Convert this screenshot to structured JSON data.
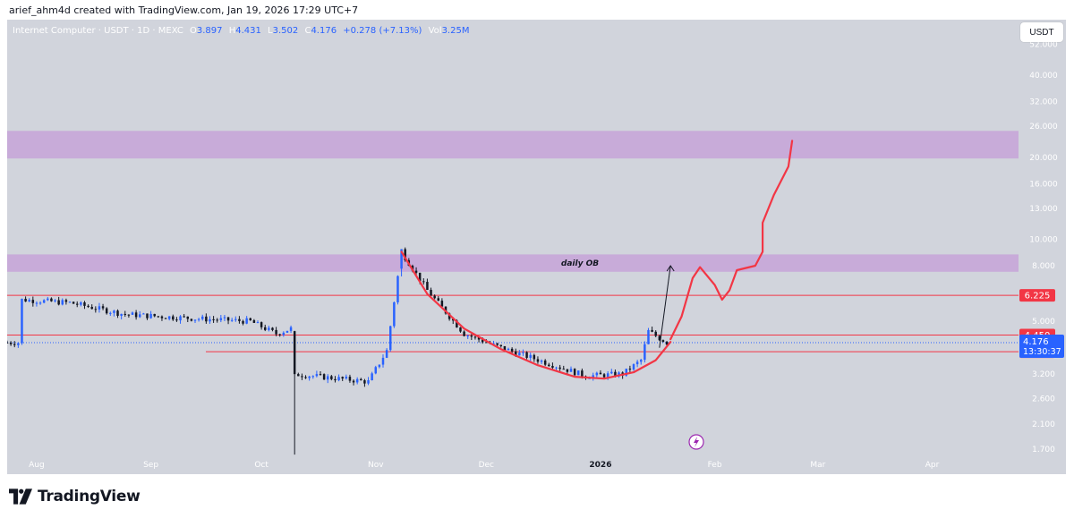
{
  "page": {
    "caption": "arief_ahm4d created with TradingView.com, Jan 19, 2026 17:29 UTC+7",
    "brand_name": "TradingView",
    "currency_button": "USDT"
  },
  "legend": {
    "symbol": "Internet Computer · USDT · 1D · MEXC",
    "open_label": "O",
    "open": "3.897",
    "high_label": "H",
    "high": "4.431",
    "low_label": "L",
    "low": "3.502",
    "close_label": "C",
    "close": "4.176",
    "change": "+0.278 (+7.13%)",
    "vol_label": "Vol",
    "volume": "3.25M"
  },
  "chart_data": {
    "type": "candlestick",
    "symbol": "Internet Computer / USDT",
    "timeframe": "1D",
    "exchange": "MEXC",
    "y_scale": "log",
    "ylim": [
      1.55,
      64
    ],
    "y_ticks": [
      "1.700",
      "2.100",
      "2.600",
      "3.200",
      "4.000",
      "5.000",
      "6.225",
      "8.000",
      "10.000",
      "13.000",
      "16.000",
      "20.000",
      "26.000",
      "32.000",
      "40.000",
      "52.000"
    ],
    "x_ticks": [
      "Aug",
      "Sep",
      "Oct",
      "Nov",
      "Dec",
      "2026",
      "Feb",
      "Mar",
      "Apr"
    ],
    "grid": false,
    "colors": {
      "background": "#d1d4dc",
      "up_candle": "#2962ff",
      "down_candle": "#131722",
      "zone": "#c6a6d8",
      "price_line": "#f23645",
      "drawing": "#f23645",
      "last_price": "#2962ff"
    },
    "price_lines": [
      {
        "label": "6.225",
        "value": 6.225,
        "color": "#f23645"
      },
      {
        "label": "4.450",
        "value": 4.45,
        "color": "#f23645"
      },
      {
        "label": "3.865",
        "value": 3.865,
        "color": "#f23645"
      }
    ],
    "last_price": {
      "label": "4.176",
      "value": 4.176,
      "countdown": "13:30:37"
    },
    "zones": [
      {
        "label": "",
        "low": 19.8,
        "high": 25.0
      },
      {
        "label": "daily OB",
        "low": 7.6,
        "high": 8.8
      }
    ],
    "anchor_points": [
      {
        "date": "2025-07-28",
        "price": 6.0
      },
      {
        "date": "2025-08-10",
        "price": 5.85
      },
      {
        "date": "2025-08-25",
        "price": 5.3
      },
      {
        "date": "2025-09-15",
        "price": 5.1
      },
      {
        "date": "2025-09-28",
        "price": 5.0
      },
      {
        "date": "2025-10-05",
        "price": 4.5
      },
      {
        "date": "2025-10-09",
        "price": 4.7
      },
      {
        "date": "2025-10-10",
        "price": 3.2
      },
      {
        "date": "2025-10-20",
        "price": 3.1
      },
      {
        "date": "2025-10-30",
        "price": 3.0
      },
      {
        "date": "2025-11-04",
        "price": 3.9
      },
      {
        "date": "2025-11-08",
        "price": 9.0
      },
      {
        "date": "2025-11-15",
        "price": 6.5
      },
      {
        "date": "2025-11-25",
        "price": 4.5
      },
      {
        "date": "2025-12-05",
        "price": 4.0
      },
      {
        "date": "2025-12-18",
        "price": 3.5
      },
      {
        "date": "2025-12-28",
        "price": 3.15
      },
      {
        "date": "2026-01-07",
        "price": 3.2
      },
      {
        "date": "2026-01-12",
        "price": 3.6
      },
      {
        "date": "2026-01-14",
        "price": 4.6
      },
      {
        "date": "2026-01-19",
        "price": 4.176
      }
    ],
    "projection_path": [
      {
        "date": "2026-01-20",
        "price": 4.3
      },
      {
        "date": "2026-01-23",
        "price": 5.2
      },
      {
        "date": "2026-01-26",
        "price": 7.2
      },
      {
        "date": "2026-01-28",
        "price": 7.9
      },
      {
        "date": "2026-02-01",
        "price": 6.8
      },
      {
        "date": "2026-02-03",
        "price": 6.0
      },
      {
        "date": "2026-02-05",
        "price": 6.5
      },
      {
        "date": "2026-02-07",
        "price": 7.7
      },
      {
        "date": "2026-02-12",
        "price": 8.0
      },
      {
        "date": "2026-02-14",
        "price": 9.0
      },
      {
        "date": "2026-02-14",
        "price": 11.5
      },
      {
        "date": "2026-02-17",
        "price": 14.5
      },
      {
        "date": "2026-02-21",
        "price": 18.5
      },
      {
        "date": "2026-02-22",
        "price": 23.0
      }
    ],
    "curve_path": [
      {
        "date": "2025-11-08",
        "price": 9.0
      },
      {
        "date": "2025-11-15",
        "price": 6.3
      },
      {
        "date": "2025-11-25",
        "price": 4.7
      },
      {
        "date": "2025-12-05",
        "price": 3.95
      },
      {
        "date": "2025-12-15",
        "price": 3.45
      },
      {
        "date": "2025-12-25",
        "price": 3.13
      },
      {
        "date": "2026-01-02",
        "price": 3.08
      },
      {
        "date": "2026-01-10",
        "price": 3.25
      },
      {
        "date": "2026-01-16",
        "price": 3.6
      },
      {
        "date": "2026-01-20",
        "price": 4.2
      }
    ],
    "arrow": {
      "from": {
        "date": "2026-01-17",
        "price": 4.0
      },
      "to": {
        "date": "2026-01-20",
        "price": 8.0
      }
    }
  }
}
